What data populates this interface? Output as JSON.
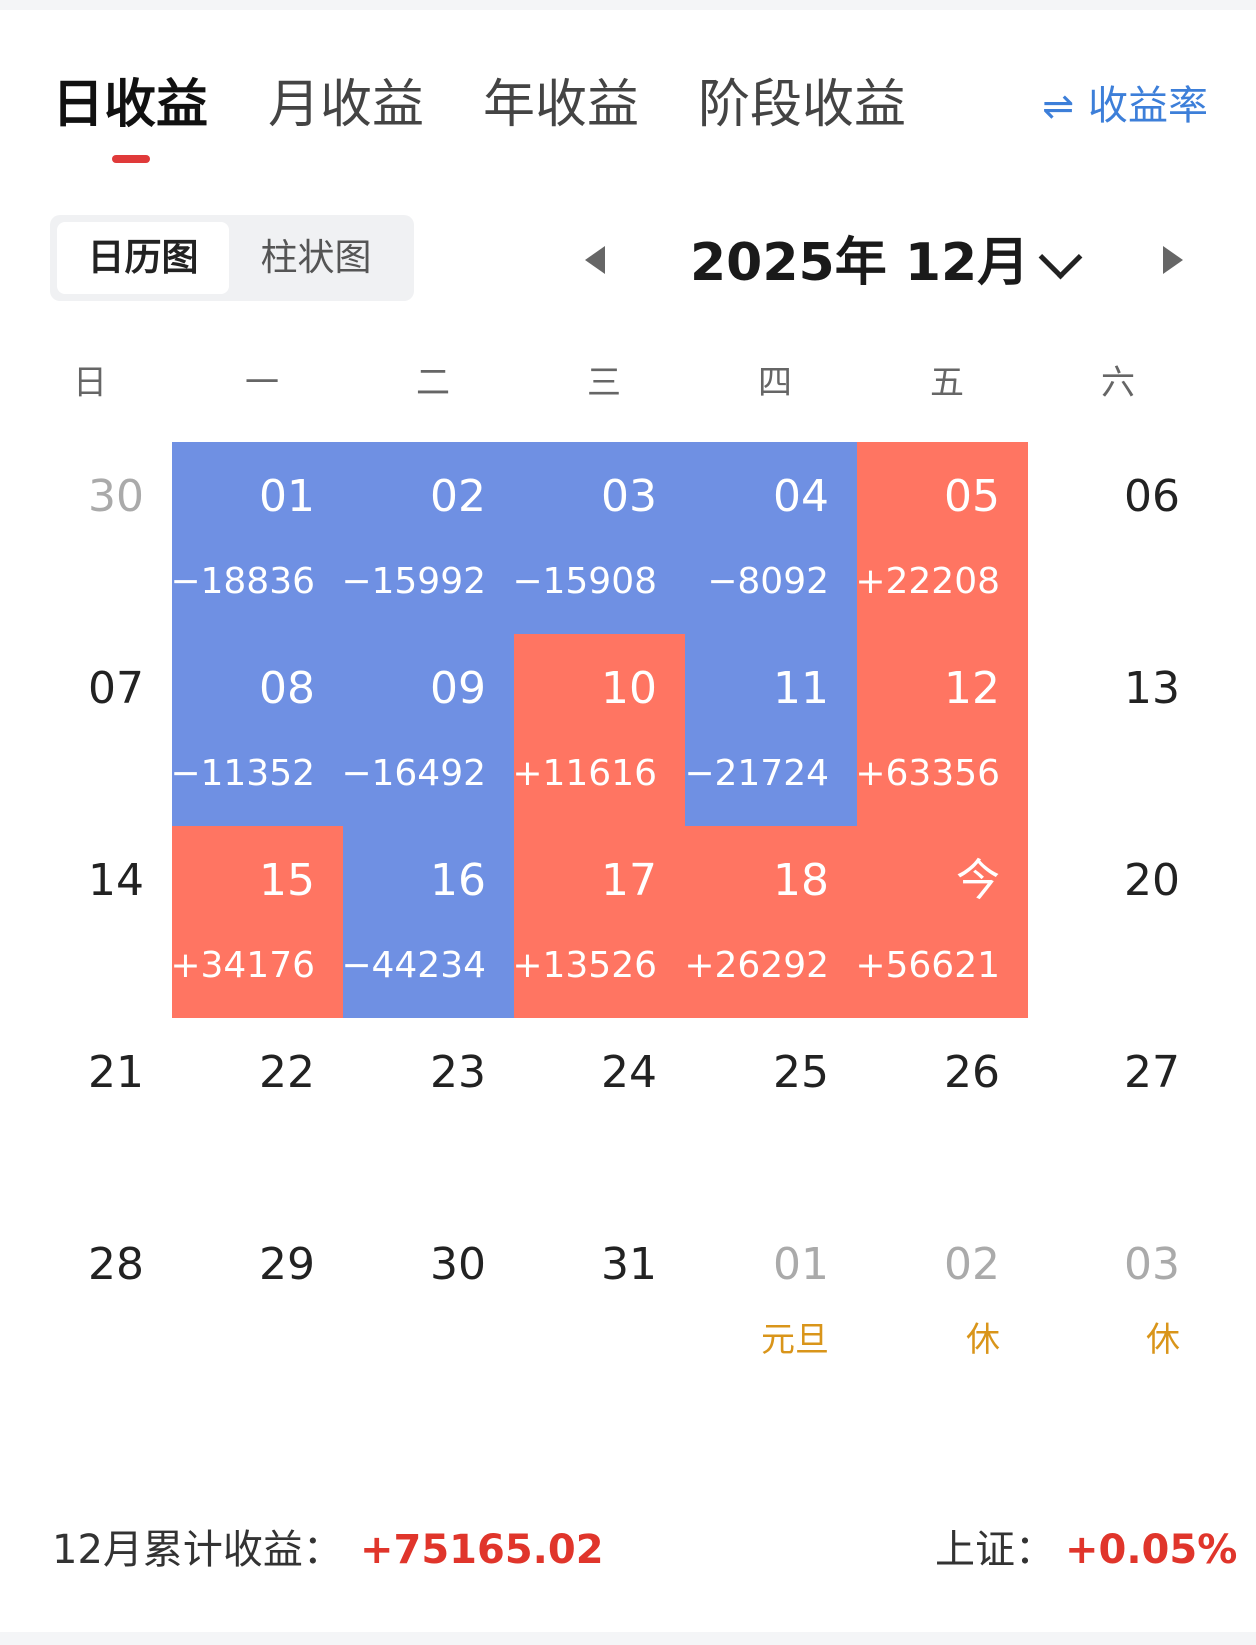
{
  "tabs": [
    "日收益",
    "月收益",
    "年收益",
    "阶段收益"
  ],
  "rate_toggle": {
    "icon": "swap-arrows-icon",
    "label": "收益率"
  },
  "view_toggle": {
    "calendar": "日历图",
    "bar": "柱状图"
  },
  "month_nav": {
    "title": "2025年 12月"
  },
  "weekdays": [
    "日",
    "一",
    "二",
    "三",
    "四",
    "五",
    "六"
  ],
  "colors": {
    "positive": "#ff7562",
    "negative": "#6f90e3",
    "accent_red": "#e0352b",
    "link_blue": "#3d7fd9",
    "holiday": "#d9951a"
  },
  "weeks": [
    [
      {
        "day": "30",
        "dim": true
      },
      {
        "day": "01",
        "amount": "−18836",
        "sign": "neg"
      },
      {
        "day": "02",
        "amount": "−15992",
        "sign": "neg"
      },
      {
        "day": "03",
        "amount": "−15908",
        "sign": "neg"
      },
      {
        "day": "04",
        "amount": "−8092",
        "sign": "neg"
      },
      {
        "day": "05",
        "amount": "+22208",
        "sign": "pos"
      },
      {
        "day": "06"
      }
    ],
    [
      {
        "day": "07"
      },
      {
        "day": "08",
        "amount": "−11352",
        "sign": "neg"
      },
      {
        "day": "09",
        "amount": "−16492",
        "sign": "neg"
      },
      {
        "day": "10",
        "amount": "+11616",
        "sign": "pos"
      },
      {
        "day": "11",
        "amount": "−21724",
        "sign": "neg"
      },
      {
        "day": "12",
        "amount": "+63356",
        "sign": "pos"
      },
      {
        "day": "13"
      }
    ],
    [
      {
        "day": "14"
      },
      {
        "day": "15",
        "amount": "+34176",
        "sign": "pos"
      },
      {
        "day": "16",
        "amount": "−44234",
        "sign": "neg"
      },
      {
        "day": "17",
        "amount": "+13526",
        "sign": "pos"
      },
      {
        "day": "18",
        "amount": "+26292",
        "sign": "pos"
      },
      {
        "day": "今",
        "amount": "+56621",
        "sign": "pos"
      },
      {
        "day": "20"
      }
    ],
    [
      {
        "day": "21"
      },
      {
        "day": "22"
      },
      {
        "day": "23"
      },
      {
        "day": "24"
      },
      {
        "day": "25"
      },
      {
        "day": "26"
      },
      {
        "day": "27"
      }
    ],
    [
      {
        "day": "28"
      },
      {
        "day": "29"
      },
      {
        "day": "30"
      },
      {
        "day": "31"
      },
      {
        "day": "01",
        "dim": true,
        "holiday": "元旦"
      },
      {
        "day": "02",
        "dim": true,
        "holiday": "休"
      },
      {
        "day": "03",
        "dim": true,
        "holiday": "休"
      }
    ]
  ],
  "footer": {
    "cumulative_label": "12月累计收益：",
    "cumulative_value": "+75165.02",
    "index_label": "上证：",
    "index_value": "+0.05%"
  }
}
